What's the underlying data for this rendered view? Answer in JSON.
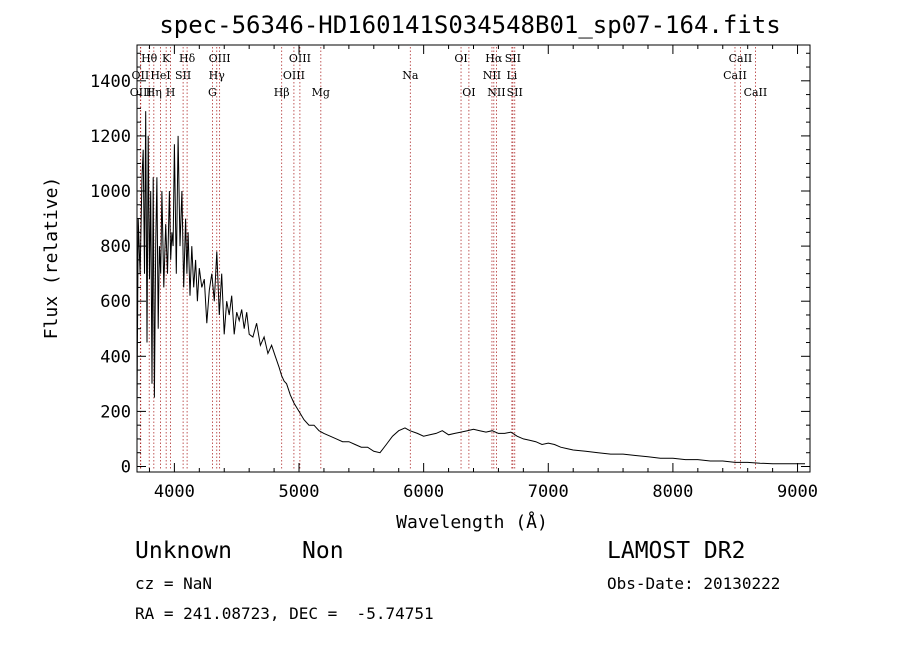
{
  "chart_data": {
    "type": "line",
    "title": "spec-56346-HD160141S034548B01_sp07-164.fits",
    "xlabel": "Wavelength (Å)",
    "ylabel": "Flux (relative)",
    "xlim": [
      3700,
      9100
    ],
    "ylim": [
      -20,
      1530
    ],
    "x_ticks": [
      4000,
      5000,
      6000,
      7000,
      8000,
      9000
    ],
    "y_ticks": [
      0,
      200,
      400,
      600,
      800,
      1000,
      1200,
      1400
    ],
    "grid": false,
    "series": [
      {
        "color": "#000000",
        "x": [
          3700,
          3710,
          3725,
          3740,
          3750,
          3760,
          3770,
          3780,
          3790,
          3800,
          3810,
          3820,
          3830,
          3840,
          3850,
          3860,
          3870,
          3880,
          3890,
          3900,
          3915,
          3930,
          3945,
          3960,
          3970,
          3980,
          3990,
          4000,
          4015,
          4030,
          4045,
          4060,
          4075,
          4090,
          4100,
          4110,
          4125,
          4140,
          4155,
          4170,
          4185,
          4200,
          4220,
          4240,
          4260,
          4280,
          4300,
          4320,
          4340,
          4360,
          4380,
          4400,
          4420,
          4440,
          4460,
          4480,
          4500,
          4520,
          4540,
          4560,
          4580,
          4600,
          4630,
          4660,
          4690,
          4720,
          4750,
          4780,
          4810,
          4840,
          4860,
          4880,
          4900,
          4930,
          4960,
          5000,
          5040,
          5080,
          5120,
          5160,
          5200,
          5250,
          5300,
          5350,
          5400,
          5450,
          5500,
          5550,
          5600,
          5650,
          5700,
          5750,
          5800,
          5850,
          5890,
          5950,
          6000,
          6050,
          6100,
          6150,
          6200,
          6250,
          6300,
          6350,
          6400,
          6450,
          6500,
          6550,
          6600,
          6650,
          6700,
          6750,
          6800,
          6850,
          6900,
          6950,
          7000,
          7050,
          7100,
          7150,
          7200,
          7300,
          7400,
          7500,
          7600,
          7700,
          7800,
          7900,
          8000,
          8100,
          8200,
          8300,
          8400,
          8500,
          8600,
          8700,
          8800,
          8900,
          9000,
          9060
        ],
        "values": [
          200,
          900,
          700,
          1050,
          1150,
          700,
          1290,
          450,
          1200,
          680,
          1000,
          300,
          1050,
          250,
          800,
          1050,
          500,
          800,
          700,
          1000,
          650,
          880,
          700,
          1000,
          750,
          850,
          800,
          1170,
          700,
          1200,
          800,
          1000,
          650,
          900,
          700,
          850,
          620,
          800,
          650,
          750,
          600,
          720,
          650,
          680,
          520,
          640,
          700,
          600,
          780,
          550,
          700,
          480,
          600,
          550,
          620,
          480,
          560,
          530,
          570,
          500,
          560,
          480,
          470,
          520,
          440,
          470,
          410,
          440,
          400,
          360,
          330,
          310,
          300,
          260,
          230,
          200,
          170,
          150,
          150,
          130,
          120,
          110,
          100,
          90,
          90,
          80,
          70,
          70,
          55,
          50,
          80,
          110,
          130,
          140,
          130,
          120,
          110,
          115,
          120,
          130,
          115,
          120,
          125,
          130,
          135,
          130,
          125,
          130,
          120,
          120,
          125,
          110,
          100,
          95,
          90,
          80,
          85,
          80,
          70,
          65,
          60,
          55,
          50,
          45,
          45,
          40,
          35,
          30,
          30,
          25,
          25,
          20,
          20,
          15,
          15,
          12,
          10,
          10,
          10,
          10
        ]
      }
    ],
    "line_markers": [
      {
        "label": "Hθ",
        "wl": 3798,
        "row": 1
      },
      {
        "label": "OII",
        "wl": 3727,
        "row": 2
      },
      {
        "label": "OIII",
        "wl": 3730,
        "row": 3
      },
      {
        "label": "K",
        "wl": 3934,
        "row": 1
      },
      {
        "label": "HeI",
        "wl": 3889,
        "row": 2
      },
      {
        "label": "Hη",
        "wl": 3835,
        "row": 3
      },
      {
        "label": "SII",
        "wl": 4070,
        "row": 2
      },
      {
        "label": "H",
        "wl": 3969,
        "row": 3
      },
      {
        "label": "Hδ",
        "wl": 4102,
        "row": 1
      },
      {
        "label": "OIII",
        "wl": 4363,
        "row": 1
      },
      {
        "label": "Hγ",
        "wl": 4340,
        "row": 2
      },
      {
        "label": "G",
        "wl": 4305,
        "row": 3
      },
      {
        "label": "Hβ",
        "wl": 4861,
        "row": 3
      },
      {
        "label": "OIII",
        "wl": 5007,
        "row": 1
      },
      {
        "label": "OIII",
        "wl": 4959,
        "row": 2
      },
      {
        "label": "Mg",
        "wl": 5175,
        "row": 3
      },
      {
        "label": "Na",
        "wl": 5893,
        "row": 2
      },
      {
        "label": "OI",
        "wl": 6300,
        "row": 1
      },
      {
        "label": "OI",
        "wl": 6363,
        "row": 3
      },
      {
        "label": "Hα",
        "wl": 6563,
        "row": 1
      },
      {
        "label": "NII",
        "wl": 6548,
        "row": 2
      },
      {
        "label": "NII",
        "wl": 6584,
        "row": 3
      },
      {
        "label": "SII",
        "wl": 6716,
        "row": 1
      },
      {
        "label": "Li",
        "wl": 6708,
        "row": 2
      },
      {
        "label": "SII",
        "wl": 6731,
        "row": 3
      },
      {
        "label": "CaII",
        "wl": 8542,
        "row": 1
      },
      {
        "label": "CaII",
        "wl": 8498,
        "row": 2
      },
      {
        "label": "CaII",
        "wl": 8662,
        "row": 3
      }
    ],
    "marker_color": "#b03030"
  },
  "info": {
    "class_label": "Unknown",
    "subclass_label": "Non",
    "survey": "LAMOST DR2",
    "cz": "cz = NaN",
    "obs_date": "Obs-Date: 20130222",
    "coords": "RA = 241.08723, DEC =  -5.74751"
  }
}
